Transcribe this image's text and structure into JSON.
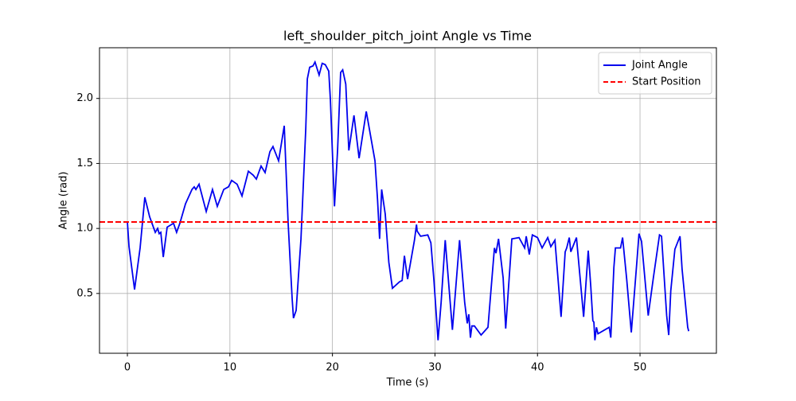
{
  "chart_data": {
    "type": "line",
    "title": "left_shoulder_pitch_joint Angle vs Time",
    "xlabel": "Time (s)",
    "ylabel": "Angle (rad)",
    "x": [
      0,
      0.16,
      0.7,
      1.24,
      1.7,
      2.17,
      2.72,
      2.95,
      3.1,
      3.26,
      3.5,
      3.88,
      4.5,
      4.8,
      5.12,
      5.67,
      6.3,
      6.52,
      6.68,
      6.99,
      7.69,
      8.3,
      8.77,
      9.4,
      9.86,
      10.17,
      10.7,
      11.18,
      11.8,
      12.27,
      12.58,
      13.04,
      13.43,
      13.9,
      14.2,
      14.75,
      15.3,
      15.68,
      16.07,
      16.2,
      16.46,
      16.93,
      17.4,
      17.55,
      17.78,
      18.1,
      18.3,
      18.7,
      19.0,
      19.3,
      19.64,
      19.8,
      20.2,
      20.5,
      20.8,
      21.0,
      21.3,
      21.6,
      22.1,
      22.6,
      23.3,
      24.15,
      24.4,
      24.6,
      24.8,
      25.15,
      25.5,
      25.85,
      26.55,
      26.8,
      27.02,
      27.33,
      27.6,
      28.0,
      28.2,
      28.26,
      28.6,
      29.3,
      29.6,
      29.9,
      30.3,
      30.6,
      31.0,
      31.7,
      32.4,
      32.9,
      33.15,
      33.3,
      33.46,
      33.6,
      33.85,
      34.5,
      35.17,
      35.8,
      35.95,
      36.2,
      36.65,
      36.9,
      37.5,
      38.2,
      38.75,
      38.9,
      39.2,
      39.5,
      40.0,
      40.45,
      41.0,
      41.3,
      41.7,
      42.3,
      42.7,
      42.85,
      43.1,
      43.25,
      43.8,
      44.5,
      44.95,
      45.2,
      45.4,
      45.5,
      45.6,
      45.75,
      45.9,
      47.0,
      47.15,
      47.45,
      47.6,
      48.1,
      48.3,
      48.7,
      49.15,
      49.7,
      49.9,
      50.15,
      50.8,
      51.3,
      51.9,
      52.1,
      52.6,
      52.8,
      53.0,
      53.4,
      53.9,
      54.1,
      54.65,
      54.75
    ],
    "series": [
      {
        "name": "Joint Angle",
        "color": "#0000ee",
        "values": [
          1.05,
          0.86,
          0.53,
          0.85,
          1.24,
          1.09,
          0.97,
          1.0,
          0.96,
          0.97,
          0.78,
          1.01,
          1.04,
          0.97,
          1.04,
          1.19,
          1.3,
          1.32,
          1.3,
          1.34,
          1.13,
          1.3,
          1.17,
          1.3,
          1.32,
          1.37,
          1.34,
          1.25,
          1.44,
          1.41,
          1.38,
          1.48,
          1.43,
          1.59,
          1.63,
          1.52,
          1.79,
          1.04,
          0.46,
          0.31,
          0.37,
          0.92,
          1.77,
          2.15,
          2.24,
          2.25,
          2.28,
          2.18,
          2.27,
          2.26,
          2.21,
          1.99,
          1.17,
          1.6,
          2.2,
          2.22,
          2.11,
          1.6,
          1.87,
          1.54,
          1.9,
          1.52,
          1.22,
          0.92,
          1.3,
          1.11,
          0.74,
          0.54,
          0.59,
          0.6,
          0.79,
          0.61,
          0.73,
          0.91,
          1.03,
          0.98,
          0.94,
          0.95,
          0.89,
          0.6,
          0.14,
          0.43,
          0.91,
          0.22,
          0.91,
          0.43,
          0.27,
          0.34,
          0.16,
          0.25,
          0.25,
          0.18,
          0.24,
          0.85,
          0.81,
          0.92,
          0.62,
          0.23,
          0.92,
          0.93,
          0.85,
          0.94,
          0.8,
          0.95,
          0.93,
          0.85,
          0.93,
          0.86,
          0.91,
          0.32,
          0.82,
          0.85,
          0.93,
          0.82,
          0.93,
          0.32,
          0.83,
          0.55,
          0.29,
          0.28,
          0.14,
          0.24,
          0.19,
          0.24,
          0.16,
          0.7,
          0.85,
          0.85,
          0.93,
          0.61,
          0.2,
          0.75,
          0.96,
          0.9,
          0.33,
          0.62,
          0.95,
          0.94,
          0.33,
          0.18,
          0.52,
          0.84,
          0.94,
          0.69,
          0.24,
          0.21
        ]
      }
    ],
    "hlines": [
      {
        "name": "Start Position",
        "color": "#ff0000",
        "value": 1.05,
        "style": "dashed"
      }
    ],
    "xlim": [
      -2.72,
      57.45
    ],
    "ylim": [
      0.04,
      2.39
    ],
    "xticks": [
      0,
      10,
      20,
      30,
      40,
      50
    ],
    "yticks": [
      0.5,
      {
        "value": 1,
        "label": "1.0"
      },
      1.5,
      {
        "value": 2,
        "label": "2.0"
      }
    ],
    "grid": true,
    "legend": "upper right"
  }
}
